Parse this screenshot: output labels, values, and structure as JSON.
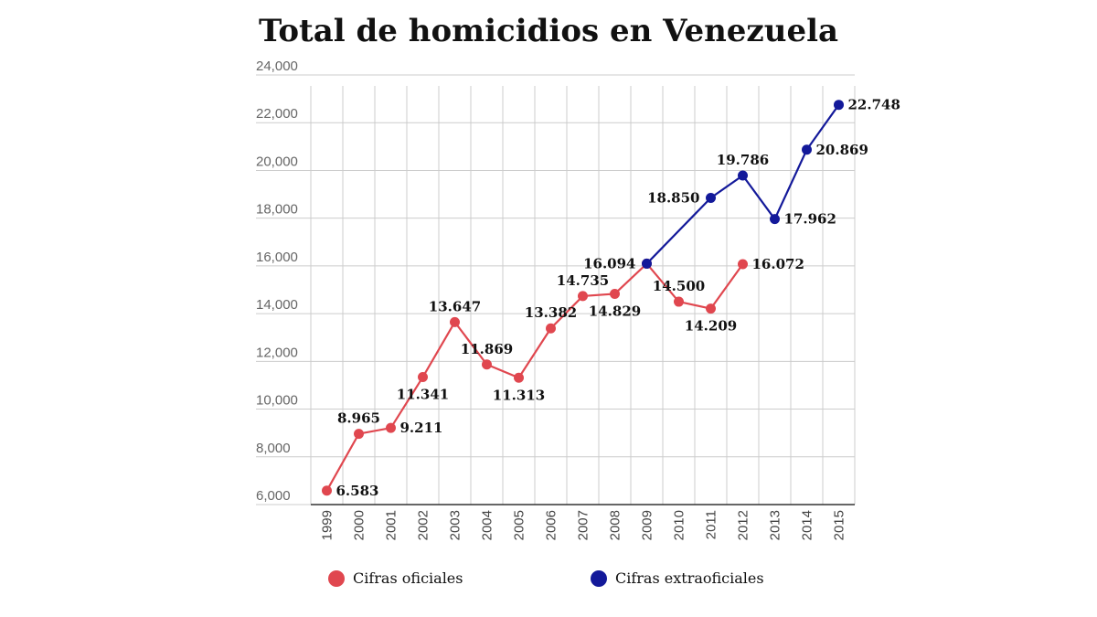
{
  "chart_data": {
    "type": "line",
    "title": "Total de homicidios en Venezuela",
    "xlabel": "",
    "ylabel": "",
    "x": [
      "1999",
      "2000",
      "2001",
      "2002",
      "2003",
      "2004",
      "2005",
      "2006",
      "2007",
      "2008",
      "2009",
      "2010",
      "2011",
      "2012",
      "2013",
      "2014",
      "2015"
    ],
    "ylim": [
      6000,
      24000
    ],
    "yticks": [
      6000,
      8000,
      10000,
      12000,
      14000,
      16000,
      18000,
      20000,
      22000,
      24000
    ],
    "ytick_labels": [
      "6,000",
      "8,000",
      "10,000",
      "12,000",
      "14,000",
      "16,000",
      "18,000",
      "20,000",
      "22,000",
      "24,000"
    ],
    "grid": true,
    "legend_position": "bottom",
    "series": [
      {
        "name": "Cifras oficiales",
        "color": "#e0474f",
        "x": [
          "1999",
          "2000",
          "2001",
          "2002",
          "2003",
          "2004",
          "2005",
          "2006",
          "2007",
          "2008",
          "2009",
          "2010",
          "2011",
          "2012"
        ],
        "values": [
          6583,
          8965,
          9211,
          11341,
          13647,
          11869,
          11313,
          13382,
          14735,
          14829,
          16094,
          14500,
          14209,
          16072
        ],
        "labels": [
          "6.583",
          "8.965",
          "9.211",
          "11.341",
          "13.647",
          "11.869",
          "11.313",
          "13.382",
          "14.735",
          "14.829",
          "16.094",
          "14.500",
          "14.209",
          "16.072"
        ],
        "label_pos": [
          "right",
          "above",
          "right",
          "below",
          "above",
          "above",
          "below",
          "above",
          "above",
          "below",
          "left",
          "above",
          "below",
          "right"
        ]
      },
      {
        "name": "Cifras extraoficiales",
        "color": "#13199a",
        "x": [
          "2009",
          "2011",
          "2012",
          "2013",
          "2014",
          "2015"
        ],
        "values": [
          16094,
          18850,
          19786,
          17962,
          20869,
          22748
        ],
        "labels": [
          "",
          "18.850",
          "19.786",
          "17.962",
          "20.869",
          "22.748"
        ],
        "label_pos": [
          "none",
          "left",
          "above",
          "right",
          "right",
          "right"
        ]
      }
    ]
  }
}
